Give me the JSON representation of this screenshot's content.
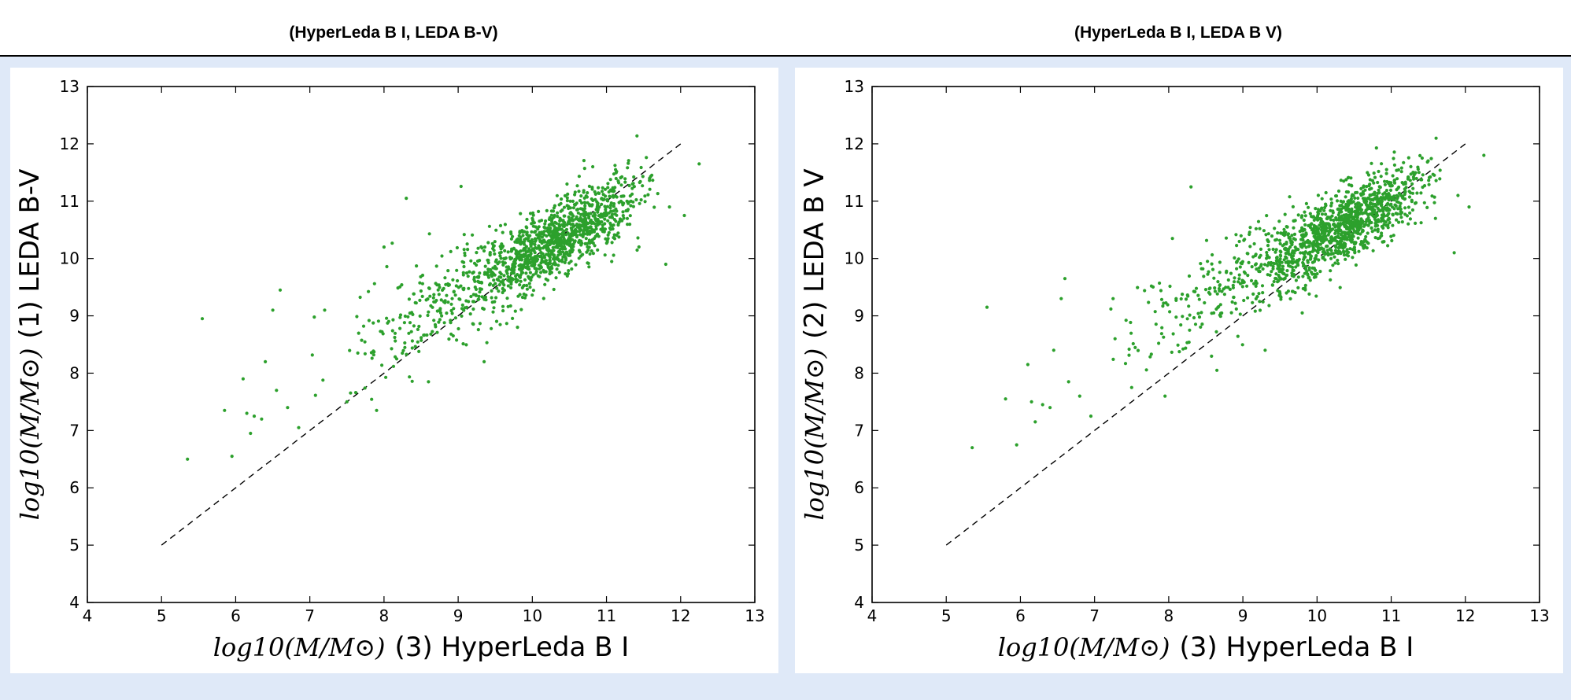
{
  "header": {
    "titles": [
      "(HyperLeda B I, LEDA B-V)",
      "(HyperLeda B I, LEDA B V)"
    ]
  },
  "colors": {
    "point": "#2ca02c",
    "panel_bg": "#dfe9f8",
    "line": "#000000"
  },
  "chart_data": [
    {
      "type": "scatter",
      "title": "(HyperLeda B I, LEDA B-V)",
      "xlabel_math": "log10(M/M⊙)",
      "xlabel_text": "(3) HyperLeda B I",
      "ylabel_math": "log10(M/M⊙)",
      "ylabel_text": "(1) LEDA B-V",
      "xlim": [
        4,
        13
      ],
      "ylim": [
        4,
        13
      ],
      "xticks": [
        4,
        5,
        6,
        7,
        8,
        9,
        10,
        11,
        12,
        13
      ],
      "yticks": [
        4,
        5,
        6,
        7,
        8,
        9,
        10,
        11,
        12,
        13
      ],
      "grid": false,
      "reference_line": {
        "style": "dashed",
        "x": [
          5,
          12
        ],
        "y": [
          5,
          12
        ]
      },
      "seed": 11,
      "trend": {
        "y_at_8": 8.7,
        "y_at_11": 10.8
      },
      "outliers": [
        {
          "x": 5.35,
          "y": 6.5
        },
        {
          "x": 5.55,
          "y": 8.95
        },
        {
          "x": 5.85,
          "y": 7.35
        },
        {
          "x": 5.95,
          "y": 6.55
        },
        {
          "x": 6.1,
          "y": 7.9
        },
        {
          "x": 6.15,
          "y": 7.3
        },
        {
          "x": 6.2,
          "y": 6.95
        },
        {
          "x": 6.25,
          "y": 7.25
        },
        {
          "x": 6.35,
          "y": 7.2
        },
        {
          "x": 6.4,
          "y": 8.2
        },
        {
          "x": 6.5,
          "y": 9.1
        },
        {
          "x": 6.55,
          "y": 7.7
        },
        {
          "x": 6.6,
          "y": 9.45
        },
        {
          "x": 6.7,
          "y": 7.4
        },
        {
          "x": 6.85,
          "y": 7.05
        },
        {
          "x": 7.2,
          "y": 9.1
        },
        {
          "x": 7.5,
          "y": 7.5
        },
        {
          "x": 7.9,
          "y": 7.35
        },
        {
          "x": 8.3,
          "y": 11.05
        },
        {
          "x": 8.0,
          "y": 10.2
        },
        {
          "x": 8.6,
          "y": 7.85
        },
        {
          "x": 9.35,
          "y": 8.2
        },
        {
          "x": 9.8,
          "y": 8.8
        },
        {
          "x": 11.8,
          "y": 9.9
        },
        {
          "x": 12.05,
          "y": 10.75
        },
        {
          "x": 12.25,
          "y": 11.65
        },
        {
          "x": 11.85,
          "y": 10.9
        }
      ]
    },
    {
      "type": "scatter",
      "title": "(HyperLeda B I, LEDA B V)",
      "xlabel_math": "log10(M/M⊙)",
      "xlabel_text": "(3) HyperLeda B I",
      "ylabel_math": "log10(M/M⊙)",
      "ylabel_text": "(2) LEDA B V",
      "xlim": [
        4,
        13
      ],
      "ylim": [
        4,
        13
      ],
      "xticks": [
        4,
        5,
        6,
        7,
        8,
        9,
        10,
        11,
        12,
        13
      ],
      "yticks": [
        4,
        5,
        6,
        7,
        8,
        9,
        10,
        11,
        12,
        13
      ],
      "grid": false,
      "reference_line": {
        "style": "dashed",
        "x": [
          5,
          12
        ],
        "y": [
          5,
          12
        ]
      },
      "seed": 29,
      "trend": {
        "y_at_8": 9.0,
        "y_at_11": 11.0
      },
      "outliers": [
        {
          "x": 5.35,
          "y": 6.7
        },
        {
          "x": 5.55,
          "y": 9.15
        },
        {
          "x": 5.8,
          "y": 7.55
        },
        {
          "x": 5.95,
          "y": 6.75
        },
        {
          "x": 6.1,
          "y": 8.15
        },
        {
          "x": 6.15,
          "y": 7.5
        },
        {
          "x": 6.2,
          "y": 7.15
        },
        {
          "x": 6.3,
          "y": 7.45
        },
        {
          "x": 6.4,
          "y": 7.4
        },
        {
          "x": 6.45,
          "y": 8.4
        },
        {
          "x": 6.55,
          "y": 9.3
        },
        {
          "x": 6.6,
          "y": 9.65
        },
        {
          "x": 6.65,
          "y": 7.85
        },
        {
          "x": 6.8,
          "y": 7.6
        },
        {
          "x": 6.95,
          "y": 7.25
        },
        {
          "x": 7.25,
          "y": 9.3
        },
        {
          "x": 7.5,
          "y": 7.75
        },
        {
          "x": 7.95,
          "y": 7.6
        },
        {
          "x": 8.3,
          "y": 11.25
        },
        {
          "x": 8.05,
          "y": 10.35
        },
        {
          "x": 8.65,
          "y": 8.05
        },
        {
          "x": 9.3,
          "y": 8.4
        },
        {
          "x": 9.8,
          "y": 9.05
        },
        {
          "x": 11.85,
          "y": 10.1
        },
        {
          "x": 12.05,
          "y": 10.9
        },
        {
          "x": 12.25,
          "y": 11.8
        },
        {
          "x": 11.9,
          "y": 11.1
        }
      ]
    }
  ]
}
